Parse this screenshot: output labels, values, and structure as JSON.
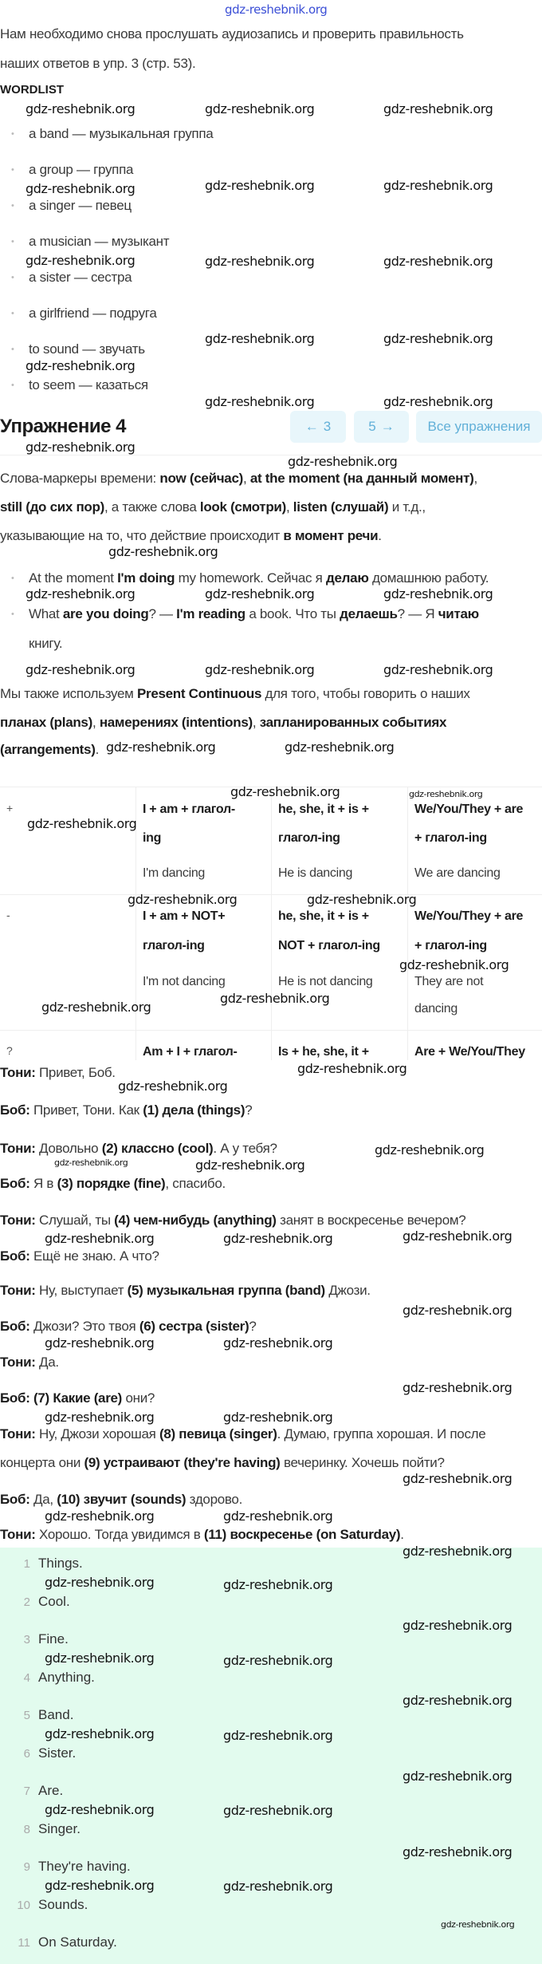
{
  "watermark": "gdz-reshebnik.org",
  "intro": [
    [
      {
        "t": "Нам необходимо снова прослушать аудиозапись и проверить правильность"
      }
    ],
    [
      {
        "t": "наших ответов в упр. 3 (стр. 53)."
      }
    ]
  ],
  "wordlist_title": "WORDLIST",
  "wordlist": [
    "a band — музыкальная группа",
    "a group — группа",
    "a singer — певец",
    "a musician — музыкант",
    "a sister — сестра",
    "a girlfriend — подруга",
    "to sound — звучать",
    "to seem — казаться"
  ],
  "exercise": {
    "title": "Упражнение 4",
    "prev_label": "3",
    "next_label": "5",
    "all_label": "Все упражнения",
    "prev_icon": "arrow-left-icon",
    "next_icon": "arrow-right-icon"
  },
  "theory": [
    [
      {
        "t": "Слова-маркеры времени: "
      },
      {
        "t": "now (сейчас)",
        "b": 1
      },
      {
        "t": ", "
      },
      {
        "t": "at the moment (на данный момент)",
        "b": 1
      },
      {
        "t": ","
      }
    ],
    [
      {
        "t": "still (до сих пор)",
        "b": 1
      },
      {
        "t": ", а также слова "
      },
      {
        "t": "look (смотри)",
        "b": 1
      },
      {
        "t": ", "
      },
      {
        "t": "listen (слушай)",
        "b": 1
      },
      {
        "t": " и т.д.,"
      }
    ],
    [
      {
        "t": "указывающие на то, что действие происходит "
      },
      {
        "t": "в момент речи",
        "b": 1
      },
      {
        "t": "."
      }
    ]
  ],
  "examples": [
    [
      {
        "t": "At the moment "
      },
      {
        "t": "I'm doing",
        "b": 1
      },
      {
        "t": " my homework. Сейчас я "
      },
      {
        "t": "делаю",
        "b": 1
      },
      {
        "t": " домашнюю работу."
      }
    ],
    [
      {
        "t": "What "
      },
      {
        "t": "are you doing",
        "b": 1
      },
      {
        "t": "? — "
      },
      {
        "t": "I'm reading",
        "b": 1
      },
      {
        "t": " a book. Что ты "
      },
      {
        "t": "делаешь",
        "b": 1
      },
      {
        "t": "? — Я "
      },
      {
        "t": "читаю",
        "b": 1
      }
    ],
    [
      {
        "t": "книгу."
      }
    ]
  ],
  "future_use": [
    [
      {
        "t": "Мы также используем "
      },
      {
        "t": "Present Continuous",
        "b": 1
      },
      {
        "t": " для того, чтобы говорить о наших"
      }
    ],
    [
      {
        "t": "планах (plans)",
        "b": 1
      },
      {
        "t": ", "
      },
      {
        "t": "намерениях (intentions)",
        "b": 1
      },
      {
        "t": ", "
      },
      {
        "t": "запланированных событиях",
        "b": 1
      }
    ],
    [
      {
        "t": "(arrangements)",
        "b": 1
      },
      {
        "t": "."
      }
    ]
  ],
  "table": {
    "rows": [
      {
        "symbol": "+",
        "cells": [
          {
            "rule": [
              "I + am + глагол-",
              "ing"
            ],
            "example": [
              "I'm dancing"
            ]
          },
          {
            "rule": [
              "he, she, it + is +",
              "глагол-ing"
            ],
            "example": [
              "He is dancing"
            ]
          },
          {
            "rule": [
              "We/You/They + are",
              "+ глагол-ing"
            ],
            "example": [
              "We are dancing"
            ]
          }
        ]
      },
      {
        "symbol": "-",
        "cells": [
          {
            "rule": [
              "I + am + NOT+",
              "глагол-ing"
            ],
            "example": [
              "I'm not dancing"
            ]
          },
          {
            "rule": [
              "he, she, it + is +",
              "NOT + глагол-ing"
            ],
            "example": [
              "He is not dancing"
            ]
          },
          {
            "rule": [
              "We/You/They + are",
              "+ глагол-ing"
            ],
            "example": [
              "They are not",
              "dancing"
            ]
          }
        ]
      },
      {
        "symbol": "?",
        "cells": [
          {
            "rule": [
              "Am + I + глагол-"
            ],
            "example": []
          },
          {
            "rule": [
              "Is + he, she, it +"
            ],
            "example": []
          },
          {
            "rule": [
              "Are + We/You/They"
            ],
            "example": []
          }
        ]
      }
    ]
  },
  "dialogue": [
    [
      [
        {
          "t": "Тони:",
          "b": 1
        },
        {
          "t": " Привет, Боб."
        }
      ]
    ],
    [
      [
        {
          "t": "Боб:",
          "b": 1
        },
        {
          "t": " Привет, Тони. Как "
        },
        {
          "t": "(1)",
          "b": 1
        },
        {
          "t": " "
        },
        {
          "t": "дела (things)",
          "b": 1
        },
        {
          "t": "?"
        }
      ]
    ],
    [
      [
        {
          "t": "Тони:",
          "b": 1
        },
        {
          "t": " Довольно "
        },
        {
          "t": "(2) классно (cool)",
          "b": 1
        },
        {
          "t": ". А у тебя?"
        }
      ]
    ],
    [
      [
        {
          "t": "Боб:",
          "b": 1
        },
        {
          "t": " Я в "
        },
        {
          "t": "(3) порядке (fine)",
          "b": 1
        },
        {
          "t": ", спасибо."
        }
      ]
    ],
    [
      [
        {
          "t": "Тони:",
          "b": 1
        },
        {
          "t": " Слушай, ты "
        },
        {
          "t": "(4) чем-нибудь (anything)",
          "b": 1
        },
        {
          "t": " занят в воскресенье вечером?"
        }
      ]
    ],
    [
      [
        {
          "t": "Боб:",
          "b": 1
        },
        {
          "t": " Ещё не знаю. А что?"
        }
      ]
    ],
    [
      [
        {
          "t": "Тони:",
          "b": 1
        },
        {
          "t": " Ну, выступает "
        },
        {
          "t": "(5) музыкальная группа (band)",
          "b": 1
        },
        {
          "t": " Джози."
        }
      ]
    ],
    [
      [
        {
          "t": "Боб:",
          "b": 1
        },
        {
          "t": " Джози? Это твоя "
        },
        {
          "t": "(6) сестра (sister)",
          "b": 1
        },
        {
          "t": "?"
        }
      ]
    ],
    [
      [
        {
          "t": "Тони:",
          "b": 1
        },
        {
          "t": " Да."
        }
      ]
    ],
    [
      [
        {
          "t": "Боб:",
          "b": 1
        },
        {
          "t": " "
        },
        {
          "t": "(7) Какие (are)",
          "b": 1
        },
        {
          "t": " они?"
        }
      ]
    ],
    [
      [
        {
          "t": "Тони:",
          "b": 1
        },
        {
          "t": " Ну, Джози хорошая "
        },
        {
          "t": "(8) певица (singer)",
          "b": 1
        },
        {
          "t": ". Думаю, группа хорошая. И после"
        }
      ],
      [
        {
          "t": "концерта они "
        },
        {
          "t": "(9) устраивают (they're having)",
          "b": 1
        },
        {
          "t": " вечеринку. Хочешь пойти?"
        }
      ]
    ],
    [
      [
        {
          "t": "Боб:",
          "b": 1
        },
        {
          "t": " Да, "
        },
        {
          "t": "(10) звучит (sounds)",
          "b": 1
        },
        {
          "t": " здорово."
        }
      ]
    ],
    [
      [
        {
          "t": "Тони:",
          "b": 1
        },
        {
          "t": " Хорошо. Тогда увидимся в "
        },
        {
          "t": "(11) воскресенье (on Saturday)",
          "b": 1
        },
        {
          "t": "."
        }
      ]
    ]
  ],
  "answers": [
    {
      "n": "1",
      "t": "Things."
    },
    {
      "n": "2",
      "t": "Cool."
    },
    {
      "n": "3",
      "t": "Fine."
    },
    {
      "n": "4",
      "t": "Anything."
    },
    {
      "n": "5",
      "t": "Band."
    },
    {
      "n": "6",
      "t": "Sister."
    },
    {
      "n": "7",
      "t": "Are."
    },
    {
      "n": "8",
      "t": "Singer."
    },
    {
      "n": "9",
      "t": "They're having."
    },
    {
      "n": "10",
      "t": "Sounds."
    },
    {
      "n": "11",
      "t": "On Saturday."
    }
  ],
  "colors": {
    "accent_bg": "#e8f6fb",
    "accent_text": "#62b0d8",
    "answers_bg": "#e2fbee",
    "watermark_top": "#3b4fd6"
  }
}
